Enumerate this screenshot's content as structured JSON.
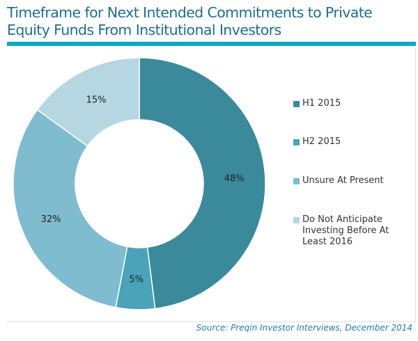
{
  "chart_data": {
    "type": "pie",
    "donut": true,
    "title": "Timeframe for Next Intended Commitments to Private Equity Funds From Institutional Investors",
    "categories": [
      "H1 2015",
      "H2 2015",
      "Unsure At Present",
      "Do Not Anticipate Investing Before At Least 2016"
    ],
    "values": [
      48,
      5,
      32,
      15
    ],
    "labels": [
      "48%",
      "5%",
      "32%",
      "15%"
    ],
    "colors": [
      "#3a8a9c",
      "#4aa3b8",
      "#7fbcd0",
      "#b6d6e1"
    ],
    "legend_placement": "right",
    "source": "Source: Preqin Investor Interviews, December 2014"
  }
}
